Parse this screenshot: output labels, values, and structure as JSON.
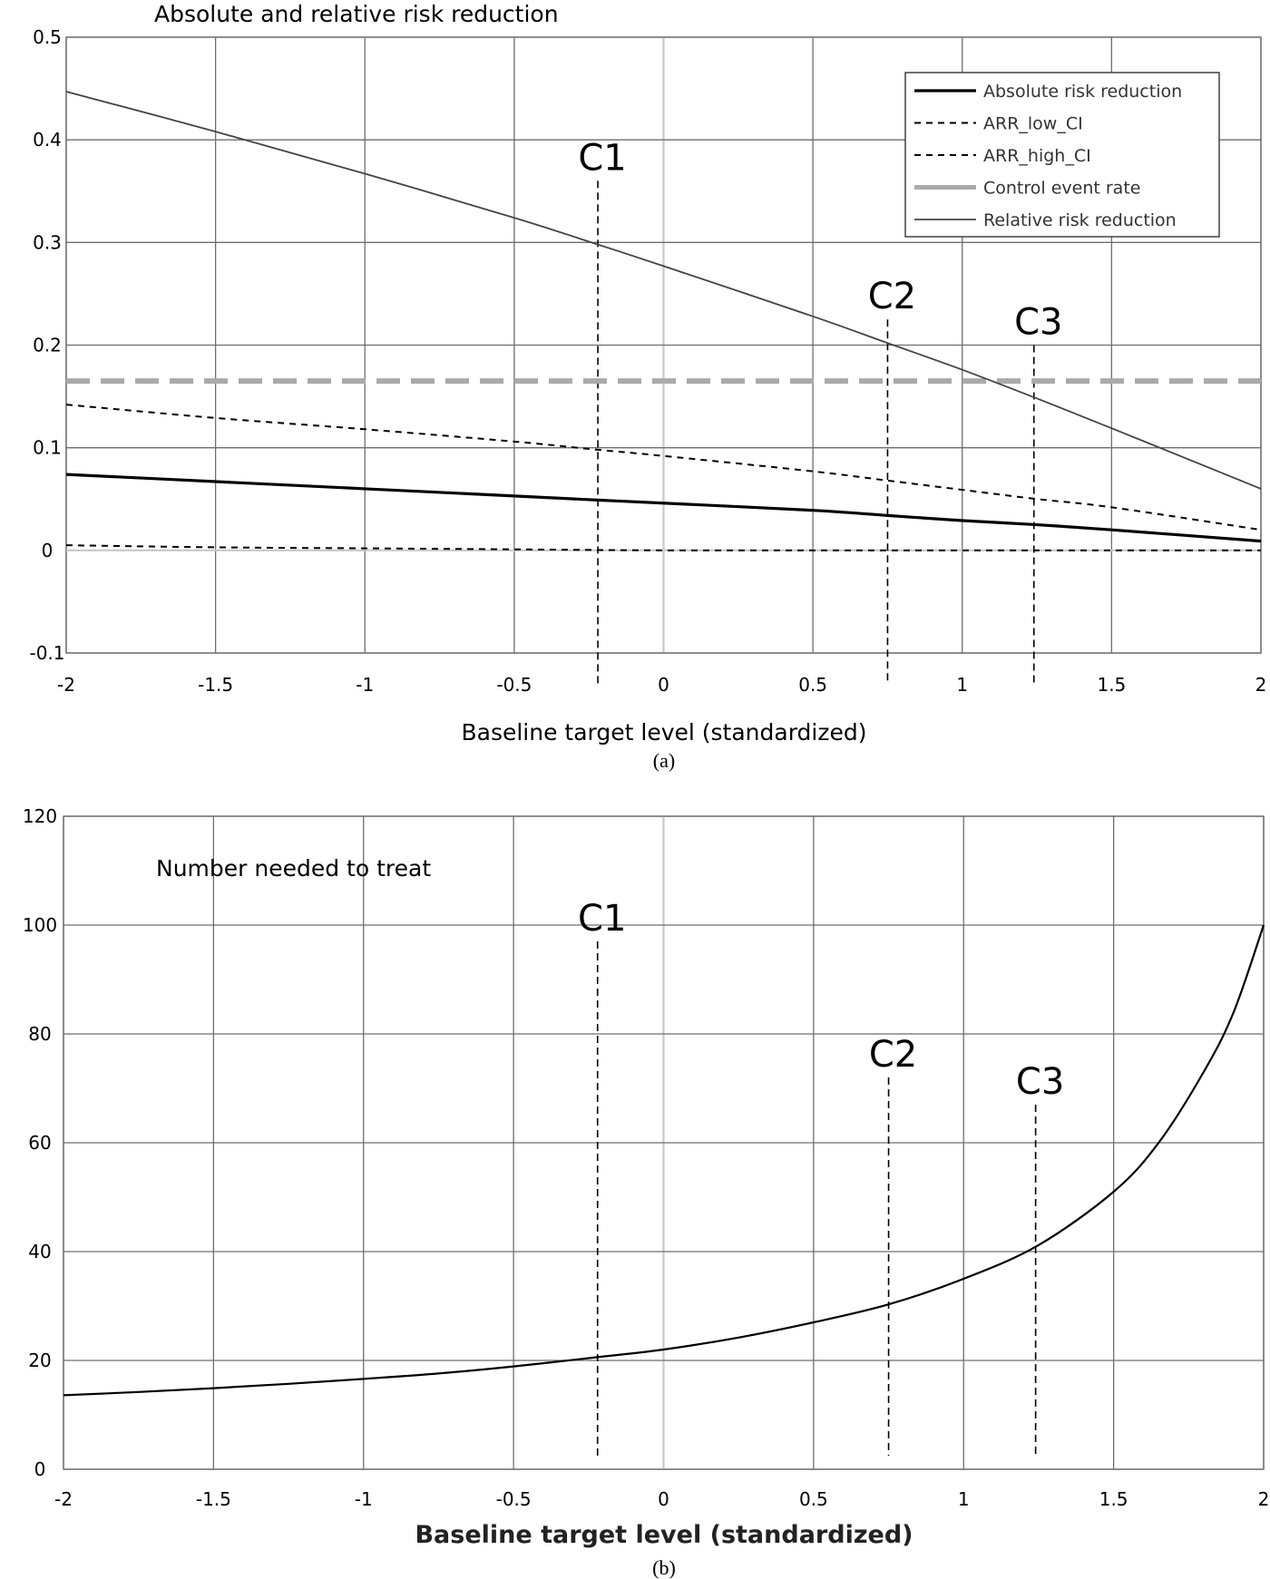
{
  "chart_data": [
    {
      "type": "line",
      "title": "Absolute and relative risk reduction",
      "xlabel": "Baseline target level (standardized)",
      "ylabel": "",
      "caption": "(a)",
      "xlim": [
        -2,
        2
      ],
      "ylim": [
        -0.1,
        0.5
      ],
      "xticks": [
        "-2",
        "-1.5",
        "-1",
        "-0.5",
        "0",
        "0.5",
        "1",
        "1.5",
        "2"
      ],
      "yticks": [
        "-0.1",
        "0",
        "0.1",
        "0.2",
        "0.3",
        "0.4",
        "0.5"
      ],
      "grid": true,
      "legend_position": "top-right",
      "series": [
        {
          "name": "Absolute risk reduction",
          "style": "solid-thick",
          "color": "#000000",
          "x": [
            -2,
            -1.5,
            -1,
            -0.5,
            -0.22,
            0,
            0.5,
            0.75,
            1,
            1.25,
            1.5,
            2
          ],
          "y": [
            0.074,
            0.067,
            0.06,
            0.053,
            0.049,
            0.046,
            0.039,
            0.034,
            0.029,
            0.025,
            0.02,
            0.009
          ]
        },
        {
          "name": "ARR_low_CI",
          "style": "dashed",
          "color": "#000000",
          "x": [
            -2,
            -1.5,
            -1,
            -0.5,
            -0.22,
            0,
            0.5,
            0.75,
            1,
            1.25,
            1.5,
            2
          ],
          "y": [
            0.142,
            0.129,
            0.118,
            0.106,
            0.098,
            0.092,
            0.077,
            0.068,
            0.059,
            0.05,
            0.042,
            0.02
          ]
        },
        {
          "name": "ARR_high_CI",
          "style": "dashed",
          "color": "#000000",
          "x": [
            -2,
            -1.5,
            -1,
            -0.5,
            0,
            0.5,
            1,
            1.5,
            2
          ],
          "y": [
            0.005,
            0.003,
            0.002,
            0.001,
            0.0,
            0.0,
            0.0,
            0.0,
            0.0
          ]
        },
        {
          "name": "Control event rate",
          "style": "dashed-thick-gray",
          "color": "#aaaaaa",
          "x": [
            -2,
            2
          ],
          "y": [
            0.165,
            0.165
          ]
        },
        {
          "name": "Relative risk reduction",
          "style": "solid-thin",
          "color": "#444444",
          "x": [
            -2,
            -1.5,
            -1,
            -0.5,
            -0.22,
            0,
            0.5,
            0.75,
            1,
            1.25,
            1.5,
            2
          ],
          "y": [
            0.447,
            0.408,
            0.367,
            0.324,
            0.298,
            0.277,
            0.228,
            0.202,
            0.176,
            0.148,
            0.119,
            0.06
          ]
        }
      ],
      "cutpoints": [
        {
          "label": "C1",
          "x": -0.22,
          "top": 0.36
        },
        {
          "label": "C2",
          "x": 0.75,
          "top": 0.225
        },
        {
          "label": "C3",
          "x": 1.24,
          "top": 0.2
        }
      ]
    },
    {
      "type": "line",
      "title": "Number needed to treat",
      "xlabel": "Baseline target level (standardized)",
      "ylabel": "",
      "caption": "(b)",
      "xlim": [
        -2,
        2
      ],
      "ylim": [
        0,
        120
      ],
      "xticks": [
        "-2",
        "-1.5",
        "-1",
        "-0.5",
        "0",
        "0.5",
        "1",
        "1.5",
        "2"
      ],
      "yticks": [
        "0",
        "20",
        "40",
        "60",
        "80",
        "100",
        "120"
      ],
      "grid": true,
      "series": [
        {
          "name": "Number needed to treat",
          "style": "solid",
          "color": "#000000",
          "x": [
            -2,
            -1.75,
            -1.5,
            -1.25,
            -1,
            -0.75,
            -0.5,
            -0.22,
            0,
            0.25,
            0.5,
            0.75,
            1,
            1.25,
            1.5,
            1.65,
            1.8,
            1.9,
            2
          ],
          "y": [
            13.6,
            14.2,
            14.9,
            15.7,
            16.6,
            17.6,
            18.9,
            20.6,
            22,
            24.2,
            27,
            30.3,
            35,
            41.2,
            51,
            60,
            73,
            84,
            100
          ]
        }
      ],
      "cutpoints": [
        {
          "label": "C1",
          "x": -0.22,
          "top": 97
        },
        {
          "label": "C2",
          "x": 0.75,
          "top": 72
        },
        {
          "label": "C3",
          "x": 1.24,
          "top": 67
        }
      ]
    }
  ]
}
